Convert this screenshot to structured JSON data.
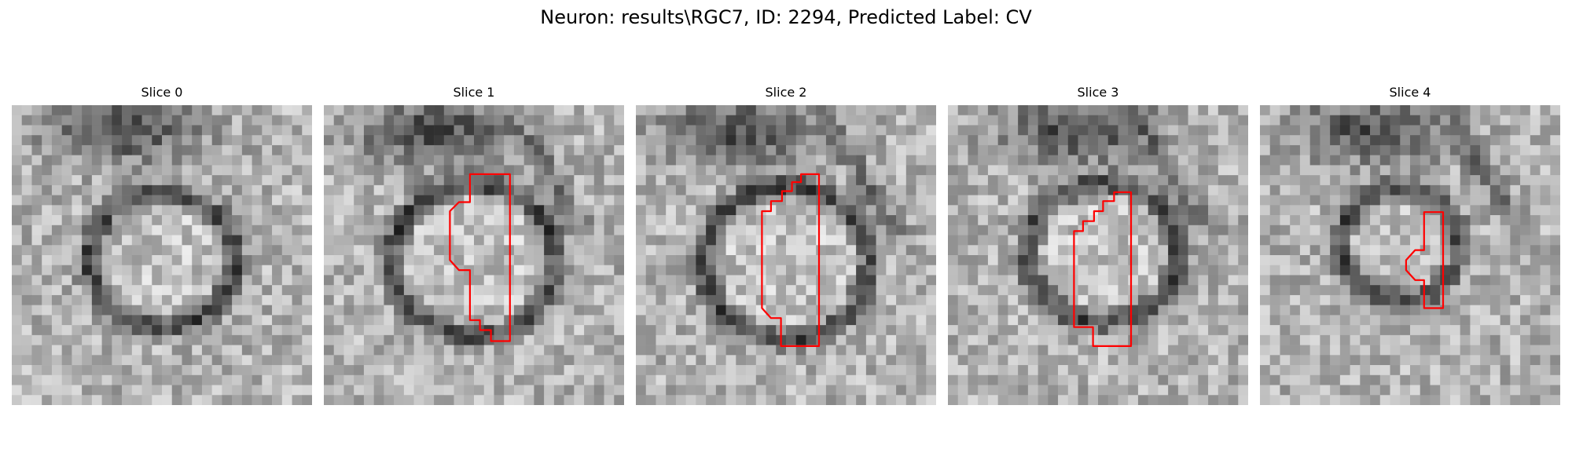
{
  "figure": {
    "title": "Neuron: results\\RGC7, ID: 2294, Predicted Label: CV",
    "panels": [
      {
        "title": "Slice 0",
        "has_contour": false
      },
      {
        "title": "Slice 1",
        "has_contour": true
      },
      {
        "title": "Slice 2",
        "has_contour": true
      },
      {
        "title": "Slice 3",
        "has_contour": true
      },
      {
        "title": "Slice 4",
        "has_contour": true
      }
    ],
    "colors": {
      "contour": "#ff0000",
      "background": "#ffffff"
    },
    "colormap": "grayscale"
  }
}
